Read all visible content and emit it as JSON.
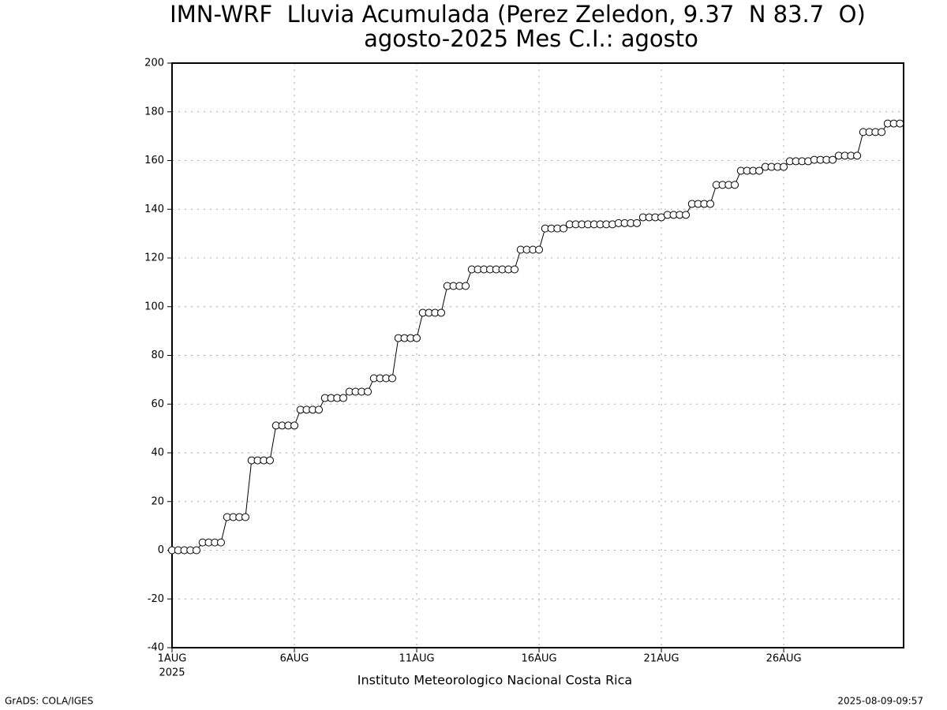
{
  "chart_data": {
    "type": "line",
    "title": "IMN-WRF  Lluvia Acumulada (Perez Zeledon, 9.37  N 83.7  O)",
    "subtitle": "agosto-2025 Mes C.I.: agosto",
    "x_label": "Instituto Meteorologico Nacional Costa Rica",
    "x_year": "2025",
    "footer_left": "GrADS: COLA/IGES",
    "footer_right": "2025-08-09-09:57",
    "x": [
      1,
      1.25,
      1.5,
      1.75,
      2,
      2.25,
      2.5,
      2.75,
      3,
      3.25,
      3.5,
      3.75,
      4,
      4.25,
      4.5,
      4.75,
      5,
      5.25,
      5.5,
      5.75,
      6,
      6.25,
      6.5,
      6.75,
      7,
      7.25,
      7.5,
      7.75,
      8,
      8.25,
      8.5,
      8.75,
      9,
      9.25,
      9.5,
      9.75,
      10,
      10.25,
      10.5,
      10.75,
      11,
      11.25,
      11.5,
      11.75,
      12,
      12.25,
      12.5,
      12.75,
      13,
      13.25,
      13.5,
      13.75,
      14,
      14.25,
      14.5,
      14.75,
      15,
      15.25,
      15.5,
      15.75,
      16,
      16.25,
      16.5,
      16.75,
      17,
      17.25,
      17.5,
      17.75,
      18,
      18.25,
      18.5,
      18.75,
      19,
      19.25,
      19.5,
      19.75,
      20,
      20.25,
      20.5,
      20.75,
      21,
      21.25,
      21.5,
      21.75,
      22,
      22.25,
      22.5,
      22.75,
      23,
      23.25,
      23.5,
      23.75,
      24,
      24.25,
      24.5,
      24.75,
      25,
      25.25,
      25.5,
      25.75,
      26,
      26.25,
      26.5,
      26.75,
      27,
      27.25,
      27.5,
      27.75,
      28,
      28.25,
      28.5,
      28.75,
      29,
      29.25,
      29.5,
      29.75,
      30,
      30.25,
      30.5,
      30.75
    ],
    "series": [
      {
        "color": "#000000",
        "values": [
          0,
          0,
          0,
          0,
          0,
          3.2,
          3.2,
          3.2,
          3.2,
          13.6,
          13.6,
          13.6,
          13.6,
          36.9,
          36.9,
          36.9,
          36.9,
          51.2,
          51.2,
          51.2,
          51.2,
          57.7,
          57.7,
          57.7,
          57.7,
          62.5,
          62.5,
          62.5,
          62.5,
          65.1,
          65.1,
          65.1,
          65.1,
          70.6,
          70.6,
          70.6,
          70.6,
          87.1,
          87.1,
          87.1,
          87.1,
          97.5,
          97.5,
          97.5,
          97.5,
          108.5,
          108.5,
          108.5,
          108.5,
          115.3,
          115.3,
          115.3,
          115.3,
          115.3,
          115.3,
          115.3,
          115.3,
          123.4,
          123.4,
          123.4,
          123.4,
          132.1,
          132.1,
          132.1,
          132.1,
          133.8,
          133.8,
          133.8,
          133.8,
          133.8,
          133.8,
          133.8,
          133.8,
          134.3,
          134.3,
          134.3,
          134.3,
          136.7,
          136.7,
          136.7,
          136.7,
          137.7,
          137.7,
          137.7,
          137.7,
          142.2,
          142.2,
          142.2,
          142.2,
          150,
          150,
          150,
          150,
          155.8,
          155.8,
          155.8,
          155.8,
          157.4,
          157.4,
          157.4,
          157.4,
          159.7,
          159.7,
          159.7,
          159.7,
          160.3,
          160.3,
          160.3,
          160.3,
          162,
          162,
          162,
          162,
          171.7,
          171.7,
          171.7,
          171.7,
          175.2,
          175.2,
          175.2
        ]
      }
    ],
    "xlim": [
      1,
      30.9
    ],
    "xticks": [
      {
        "value": 1,
        "label": "1AUG"
      },
      {
        "value": 6,
        "label": "6AUG"
      },
      {
        "value": 11,
        "label": "11AUG"
      },
      {
        "value": 16,
        "label": "16AUG"
      },
      {
        "value": 21,
        "label": "21AUG"
      },
      {
        "value": 26,
        "label": "26AUG"
      }
    ],
    "ylim": [
      -40,
      200
    ],
    "yticks": [
      -40,
      -20,
      0,
      20,
      40,
      60,
      80,
      100,
      120,
      140,
      160,
      180,
      200
    ],
    "grid": true
  }
}
